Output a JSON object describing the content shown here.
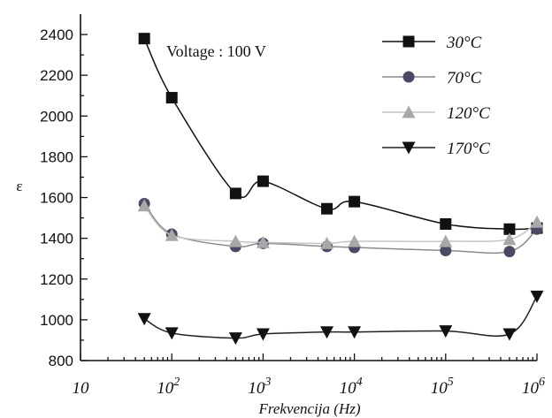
{
  "chart_data": {
    "type": "line",
    "title": "",
    "xlabel": "Frekvencija (Hz)",
    "ylabel": "ε",
    "xscale": "log",
    "xlim": [
      10,
      1000000
    ],
    "ylim": [
      800,
      2500
    ],
    "grid": false,
    "legend_position": "top-right",
    "annotation": "Voltage : 100 V",
    "y_ticks": [
      800,
      1000,
      1200,
      1400,
      1600,
      1800,
      2000,
      2200,
      2400
    ],
    "x_ticks": [
      {
        "value": 10,
        "base": "10",
        "exp": ""
      },
      {
        "value": 100,
        "base": "10",
        "exp": "2"
      },
      {
        "value": 1000,
        "base": "10",
        "exp": "3"
      },
      {
        "value": 10000,
        "base": "10",
        "exp": "4"
      },
      {
        "value": 100000,
        "base": "10",
        "exp": "5"
      },
      {
        "value": 1000000,
        "base": "10",
        "exp": "6"
      }
    ],
    "series": [
      {
        "name": "30°C",
        "marker": "square",
        "color": "#111111",
        "line_color": "#111111",
        "x": [
          50,
          100,
          500,
          1000,
          5000,
          10000,
          100000,
          500000,
          1000000
        ],
        "y": [
          2380,
          2090,
          1620,
          1680,
          1545,
          1580,
          1470,
          1445,
          1450
        ]
      },
      {
        "name": "70°C",
        "marker": "circle",
        "color": "#4a4a66",
        "line_color": "#8a8a8a",
        "x": [
          50,
          100,
          500,
          1000,
          5000,
          10000,
          100000,
          500000,
          1000000
        ],
        "y": [
          1570,
          1420,
          1360,
          1375,
          1360,
          1355,
          1340,
          1335,
          1445
        ]
      },
      {
        "name": "120°C",
        "marker": "triangle-up",
        "color": "#a8a8a8",
        "line_color": "#c4c4c4",
        "x": [
          50,
          100,
          500,
          1000,
          5000,
          10000,
          100000,
          500000,
          1000000
        ],
        "y": [
          1560,
          1415,
          1385,
          1380,
          1375,
          1385,
          1385,
          1395,
          1480
        ]
      },
      {
        "name": "170°C",
        "marker": "triangle-down",
        "color": "#111111",
        "line_color": "#222222",
        "x": [
          50,
          100,
          500,
          1000,
          5000,
          10000,
          100000,
          500000,
          1000000
        ],
        "y": [
          1005,
          935,
          910,
          930,
          940,
          940,
          945,
          930,
          1115
        ]
      }
    ]
  }
}
